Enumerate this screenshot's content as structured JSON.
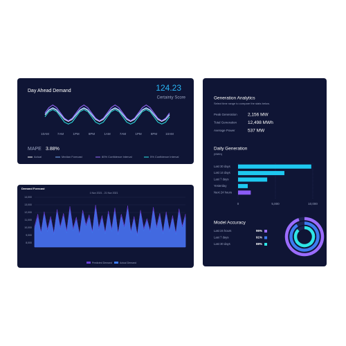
{
  "certainty": {
    "value": "124.23",
    "label": "Certainty Score"
  },
  "mape": {
    "label": "MAPE",
    "value": "3.88%"
  },
  "analytics": {
    "title": "Generation Analytics",
    "subtitle": "Select time range to compare the stats below.",
    "stats": [
      {
        "label": "Peak Generation",
        "value": "2,156 MW"
      },
      {
        "label": "Total Generation",
        "value": "12,498 MWh"
      },
      {
        "label": "Average Power",
        "value": "537 MW"
      }
    ]
  },
  "chart_data": [
    {
      "type": "line",
      "title": "Day Ahead Demand",
      "categories": [
        "10AM",
        null,
        null,
        null,
        "7AM",
        null,
        null,
        null,
        "1PM",
        null,
        null,
        null,
        "8PM",
        null,
        null,
        null,
        "1AM",
        null,
        null,
        null,
        "7AM",
        null,
        null,
        null,
        "1PM",
        null,
        null,
        null,
        "8PM",
        null,
        null,
        null,
        "10AM"
      ],
      "ylim": [
        30,
        70
      ],
      "series": [
        {
          "name": "Actual",
          "color": "#ffffff",
          "values": [
            50,
            57,
            60,
            57,
            50,
            43,
            40,
            43,
            50,
            57,
            60,
            57,
            50,
            43,
            40,
            43,
            50,
            57,
            60,
            57,
            50,
            43,
            40,
            43,
            50,
            57,
            60,
            57,
            50,
            43,
            40,
            43,
            50
          ]
        },
        {
          "name": "Median Forecast",
          "color": "#7fb3ff",
          "values": [
            51,
            58,
            61,
            58,
            51,
            44,
            41,
            44,
            51,
            58,
            61,
            58,
            51,
            44,
            41,
            44,
            51,
            58,
            61,
            58,
            51,
            44,
            41,
            44,
            51,
            58,
            61,
            58,
            51,
            44,
            41,
            44,
            51
          ]
        },
        {
          "name": "80% Confidence Interval",
          "color": "#9b6cff",
          "values": [
            53,
            61,
            65,
            61,
            53,
            45,
            41,
            45,
            53,
            61,
            65,
            61,
            53,
            45,
            41,
            45,
            53,
            61,
            65,
            61,
            53,
            45,
            41,
            45,
            53,
            61,
            65,
            61,
            53,
            45,
            41,
            45,
            53
          ]
        },
        {
          "name": "5% Confidence Interval",
          "color": "#2ee6e6",
          "values": [
            47,
            55,
            58,
            55,
            47,
            39,
            36,
            39,
            47,
            55,
            58,
            55,
            47,
            39,
            36,
            39,
            47,
            55,
            58,
            55,
            47,
            39,
            36,
            39,
            47,
            55,
            58,
            55,
            47,
            39,
            36,
            39,
            47
          ]
        }
      ]
    },
    {
      "type": "area",
      "title": "Demand Forecast",
      "subtitle": "1 Nov 2021 - 21 Nov 2021",
      "ylim": [
        8000,
        14000
      ],
      "grid": true,
      "yticks": [
        {
          "value": 14000,
          "label": "14,000"
        },
        {
          "value": 13000,
          "label": "13,000"
        },
        {
          "value": 12000,
          "label": "12,000"
        },
        {
          "value": 11000,
          "label": "11,000"
        },
        {
          "value": 10000,
          "label": "10,000"
        },
        {
          "value": 9000,
          "label": "9,000"
        },
        {
          "value": 8000,
          "label": "8,000"
        }
      ],
      "series": [
        {
          "name": "Predicted Demand",
          "color": "#6a3fd8",
          "values": [
            10200,
            11800,
            9400,
            12100,
            9800,
            11500,
            9300,
            12400,
            10100,
            11900,
            9600,
            12800,
            9900,
            11400,
            9200,
            12300,
            10400,
            11700,
            9500,
            13000,
            10000,
            11600,
            9400,
            12200,
            9800,
            12600,
            9300,
            11800,
            10200,
            12900,
            9500,
            11500,
            9100,
            12300,
            9900,
            11200,
            9600,
            12700,
            10100,
            11900,
            9400,
            12100,
            9700,
            11600,
            9300,
            12500,
            10200,
            11800
          ]
        },
        {
          "name": "Actual Demand",
          "color": "#3d7bf0",
          "values": [
            9900,
            11300,
            9200,
            11700,
            9500,
            11100,
            9100,
            12000,
            9800,
            11500,
            9300,
            12300,
            9600,
            11000,
            9000,
            11900,
            10100,
            11300,
            9300,
            12500,
            9700,
            11200,
            9200,
            11800,
            9500,
            12100,
            9100,
            11400,
            9900,
            12400,
            9300,
            11100,
            8900,
            11900,
            9600,
            10900,
            9400,
            12200,
            9800,
            11500,
            9200,
            11700,
            9500,
            11200,
            9100,
            12000,
            9900,
            11400
          ]
        }
      ]
    },
    {
      "type": "hbar",
      "title": "Daily Generation",
      "subtitle": "(MWh)",
      "categories": [
        "Last 30 days",
        "Last 14 days",
        "Last 7 days",
        "Yesterday",
        "Next 24 hours"
      ],
      "values": [
        9800,
        6200,
        3900,
        1300,
        1700
      ],
      "colors": [
        "#1ec8f0",
        "#1ec8f0",
        "#1ec8f0",
        "#1ec8f0",
        "#8b5cf6"
      ],
      "xlim": [
        0,
        10000
      ],
      "xticks": [
        0,
        {
          "value": 5000,
          "label": "5,000"
        },
        {
          "value": 10000,
          "label": "10,000"
        }
      ]
    },
    {
      "type": "radial",
      "title": "Model Accuracy",
      "categories": [
        "Last 24 hours",
        "Last 7 days",
        "Last 30 days"
      ],
      "values": [
        95,
        91,
        88
      ],
      "value_labels": [
        "95%",
        "91%",
        "88%"
      ],
      "colors": [
        "#9b6cff",
        "#3d7bf0",
        "#2ee6e6"
      ]
    }
  ]
}
